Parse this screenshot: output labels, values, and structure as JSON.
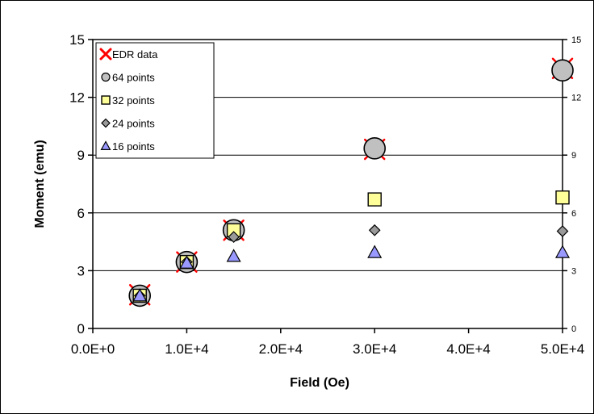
{
  "chart_data": {
    "type": "scatter",
    "xlabel": "Field (Oe)",
    "ylabel": "Moment (emu)",
    "xlim": [
      0,
      50000
    ],
    "ylim": [
      0,
      15
    ],
    "x_ticks": [
      "0.0E+0",
      "1.0E+4",
      "2.0E+4",
      "3.0E+4",
      "4.0E+4",
      "5.0E+4"
    ],
    "x_tick_values": [
      0,
      10000,
      20000,
      30000,
      40000,
      50000
    ],
    "y_ticks": [
      "0",
      "3",
      "6",
      "9",
      "12",
      "15"
    ],
    "y_tick_values": [
      0,
      3,
      6,
      9,
      12,
      15
    ],
    "secondary_y_ticks": [
      "0",
      "3",
      "6",
      "9",
      "12",
      "15"
    ],
    "grid": "horizontal",
    "legend_position": "top-left",
    "series": [
      {
        "name": "EDR data",
        "marker": "x",
        "color": "#ff0000",
        "x": [
          5000,
          10000,
          15000,
          30000,
          50000
        ],
        "y": [
          1.75,
          3.45,
          5.1,
          9.3,
          13.5
        ]
      },
      {
        "name": "64 points",
        "marker": "circle",
        "color": "#c0c0c0",
        "x": [
          5000,
          10000,
          15000,
          30000,
          50000
        ],
        "y": [
          1.7,
          3.45,
          5.1,
          9.35,
          13.4
        ]
      },
      {
        "name": "32 points",
        "marker": "square",
        "color": "#ffff99",
        "x": [
          5000,
          10000,
          15000,
          30000,
          50000
        ],
        "y": [
          1.7,
          3.45,
          5.1,
          6.7,
          6.8
        ]
      },
      {
        "name": "24 points",
        "marker": "diamond",
        "color": "#999999",
        "x": [
          5000,
          10000,
          15000,
          30000,
          50000
        ],
        "y": [
          1.7,
          3.45,
          4.75,
          5.1,
          5.05
        ]
      },
      {
        "name": "16 points",
        "marker": "triangle",
        "color": "#9999ff",
        "x": [
          5000,
          10000,
          15000,
          30000,
          50000
        ],
        "y": [
          1.7,
          3.4,
          3.75,
          3.95,
          3.95
        ]
      }
    ]
  }
}
